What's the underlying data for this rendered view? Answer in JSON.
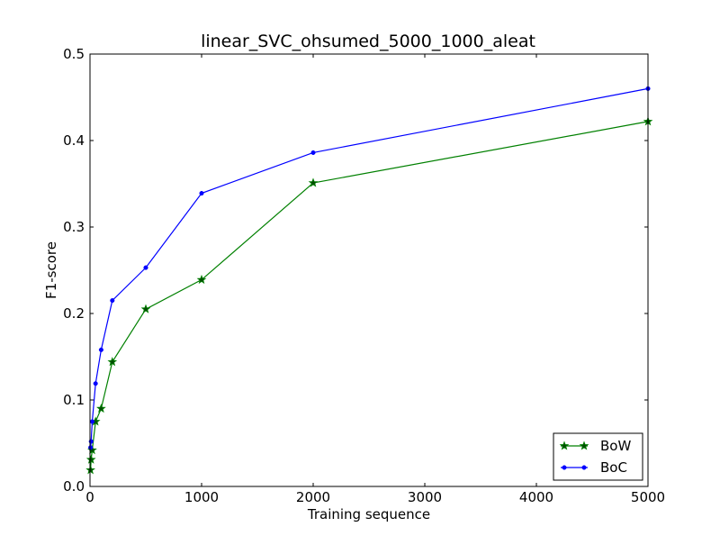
{
  "chart_data": {
    "type": "line",
    "title": "linear_SVC_ohsumed_5000_1000_aleat",
    "xlabel": "Training sequence",
    "ylabel": "F1-score",
    "xlim": [
      0,
      5000
    ],
    "ylim": [
      0.0,
      0.5
    ],
    "xticks": [
      0,
      1000,
      2000,
      3000,
      4000,
      5000
    ],
    "xtick_labels": [
      "0",
      "1000",
      "2000",
      "3000",
      "4000",
      "5000"
    ],
    "yticks": [
      0.0,
      0.1,
      0.2,
      0.3,
      0.4,
      0.5
    ],
    "ytick_labels": [
      "0.0",
      "0.1",
      "0.2",
      "0.3",
      "0.4",
      "0.5"
    ],
    "grid": false,
    "legend_position": "bottom-right",
    "series": [
      {
        "name": "BoW",
        "color": "#008000",
        "marker": "star",
        "x": [
          5,
          10,
          20,
          50,
          100,
          200,
          500,
          1000,
          2000,
          5000
        ],
        "y": [
          0.019,
          0.031,
          0.042,
          0.075,
          0.09,
          0.144,
          0.205,
          0.239,
          0.351,
          0.422
        ]
      },
      {
        "name": "BoC",
        "color": "#0000ff",
        "marker": "point",
        "x": [
          5,
          10,
          20,
          50,
          100,
          200,
          500,
          1000,
          2000,
          5000
        ],
        "y": [
          0.045,
          0.052,
          0.075,
          0.119,
          0.158,
          0.215,
          0.253,
          0.339,
          0.386,
          0.46
        ]
      }
    ]
  }
}
